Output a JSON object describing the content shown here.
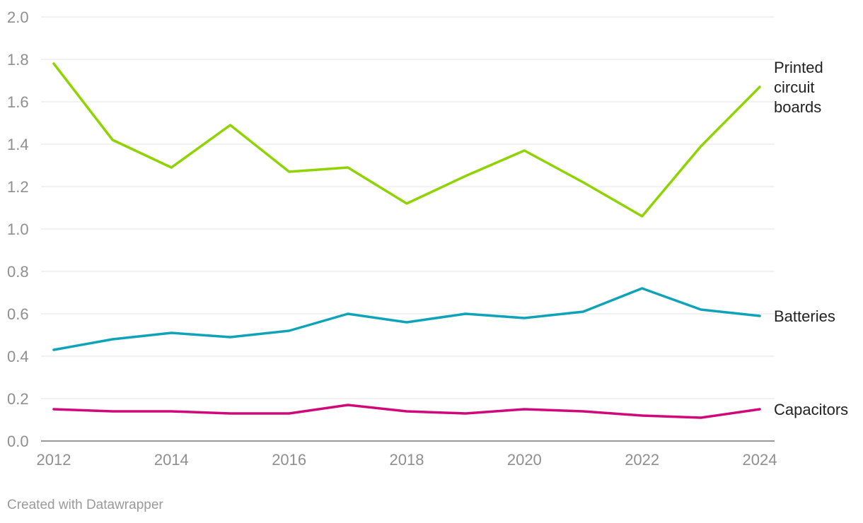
{
  "chart_data": {
    "type": "line",
    "title": "",
    "xlabel": "",
    "ylabel": "",
    "x": [
      2012,
      2013,
      2014,
      2015,
      2016,
      2017,
      2018,
      2019,
      2020,
      2021,
      2022,
      2023,
      2024
    ],
    "x_ticks": [
      "2012",
      "2014",
      "2016",
      "2018",
      "2020",
      "2022",
      "2024"
    ],
    "y_ticks": [
      "0.0",
      "0.2",
      "0.4",
      "0.6",
      "0.8",
      "1.0",
      "1.2",
      "1.4",
      "1.6",
      "1.8",
      "2.0"
    ],
    "ylim": [
      0,
      2.0
    ],
    "xlim": [
      2012,
      2024
    ],
    "grid": true,
    "legend": "direct labels at line ends",
    "series": [
      {
        "name": "Printed circuit boards",
        "label_lines": [
          "Printed",
          "circuit",
          "boards"
        ],
        "color": "#8fd400",
        "values": [
          1.78,
          1.42,
          1.29,
          1.49,
          1.27,
          1.29,
          1.12,
          1.25,
          1.37,
          1.22,
          1.06,
          1.39,
          1.67
        ]
      },
      {
        "name": "Batteries",
        "label_lines": [
          "Batteries"
        ],
        "color": "#0fa3b9",
        "values": [
          0.43,
          0.48,
          0.51,
          0.49,
          0.52,
          0.6,
          0.56,
          0.6,
          0.58,
          0.61,
          0.72,
          0.62,
          0.59
        ]
      },
      {
        "name": "Capacitors",
        "label_lines": [
          "Capacitors"
        ],
        "color": "#d0087a",
        "values": [
          0.15,
          0.14,
          0.14,
          0.13,
          0.13,
          0.17,
          0.14,
          0.13,
          0.15,
          0.14,
          0.12,
          0.11,
          0.15
        ]
      }
    ]
  },
  "footer": {
    "credit": "Created with Datawrapper"
  }
}
